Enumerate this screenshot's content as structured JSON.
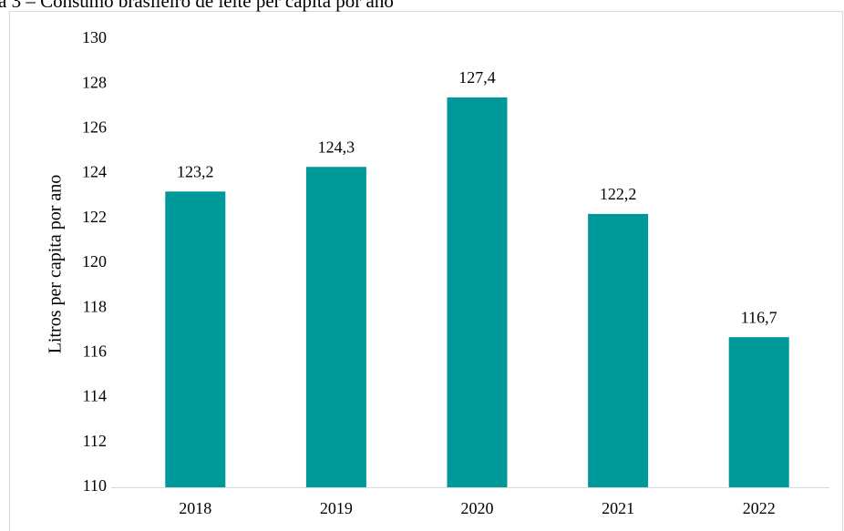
{
  "chart_data": {
    "type": "bar",
    "title": "a 3 – Consumo brasileiro de leite per capita por ano",
    "y_label": "Litros per capita por ano",
    "categories": [
      "2018",
      "2019",
      "2020",
      "2021",
      "2022"
    ],
    "values": [
      123.2,
      124.3,
      127.4,
      122.2,
      116.7
    ],
    "value_labels": [
      "123,2",
      "124,3",
      "127,4",
      "122,2",
      "116,7"
    ],
    "color": "#009999",
    "ylim": [
      110,
      130
    ],
    "yticks": [
      110,
      112,
      114,
      116,
      118,
      120,
      122,
      124,
      126,
      128,
      130
    ],
    "grid": false
  }
}
